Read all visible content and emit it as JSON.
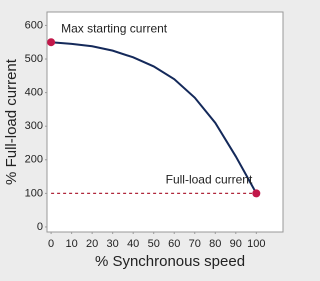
{
  "chart_data": {
    "type": "line",
    "x_label": "% Synchronous speed",
    "y_label": "% Full-load current",
    "x": [
      0,
      10,
      20,
      30,
      40,
      50,
      60,
      70,
      80,
      90,
      100
    ],
    "series": [
      {
        "color": "#14295a",
        "values": [
          550,
          545,
          538,
          525,
          505,
          478,
          440,
          385,
          310,
          210,
          100
        ]
      }
    ],
    "marker_color": "#c2184a",
    "annotations": [
      {
        "text": "Max starting current",
        "x": 0,
        "y": 550
      },
      {
        "text": "Full-load current",
        "x": 100,
        "y": 100
      }
    ],
    "reference_line": {
      "y": 100,
      "x": [
        0,
        100
      ],
      "color": "#b0283c"
    },
    "xlim": [
      -2,
      113
    ],
    "ylim": [
      -15,
      640
    ],
    "xticks": [
      0,
      10,
      20,
      30,
      40,
      50,
      60,
      70,
      80,
      90,
      100
    ],
    "yticks": [
      0,
      100,
      200,
      300,
      400,
      500,
      600
    ]
  }
}
